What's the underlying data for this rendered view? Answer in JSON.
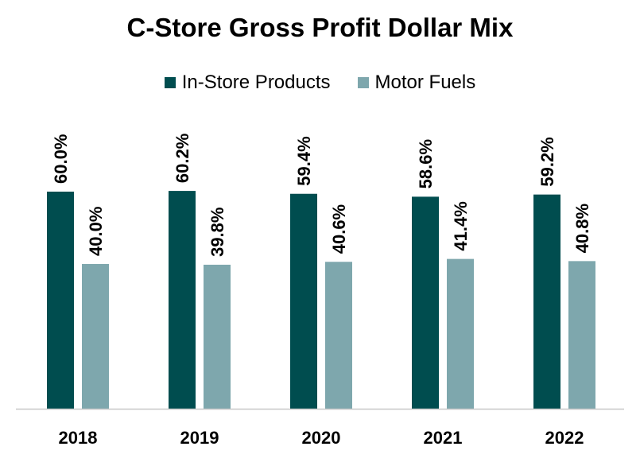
{
  "chart_data": {
    "type": "bar",
    "title": "C-Store Gross Profit Dollar Mix",
    "categories": [
      "2018",
      "2019",
      "2020",
      "2021",
      "2022"
    ],
    "series": [
      {
        "name": "In-Store Products",
        "values": [
          60.0,
          60.2,
          59.4,
          58.6,
          59.2
        ],
        "labels": [
          "60.0%",
          "60.2%",
          "59.4%",
          "58.6%",
          "59.2%"
        ],
        "color": "#004d4f"
      },
      {
        "name": "Motor Fuels",
        "values": [
          40.0,
          39.8,
          40.6,
          41.4,
          40.8
        ],
        "labels": [
          "40.0%",
          "39.8%",
          "40.6%",
          "41.4%",
          "40.8%"
        ],
        "color": "#7ea7ad"
      }
    ],
    "ylim": [
      0,
      100
    ],
    "grid": false,
    "legend_position": "top"
  }
}
